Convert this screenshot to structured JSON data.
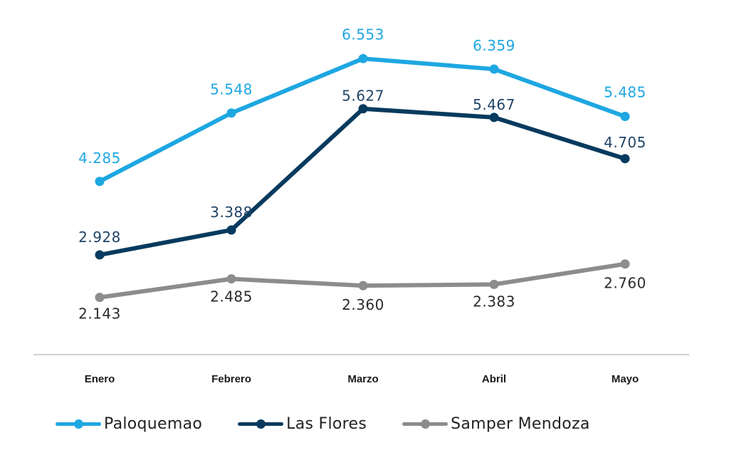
{
  "chart_data": {
    "type": "line",
    "categories": [
      "Enero",
      "Febrero",
      "Marzo",
      "Abril",
      "Mayo"
    ],
    "series": [
      {
        "name": "Paloquemao",
        "values": [
          4285,
          5548,
          6553,
          6359,
          5485
        ],
        "labels": [
          "4.285",
          "5.548",
          "6.553",
          "6.359",
          "5.485"
        ],
        "color": "#1ea7e1",
        "label_color": "#1ea7e1"
      },
      {
        "name": "Las Flores",
        "values": [
          2928,
          3388,
          5627,
          5467,
          4705
        ],
        "labels": [
          "2.928",
          "3.388",
          "5.627",
          "5.467",
          "4.705"
        ],
        "color": "#063a5e",
        "label_color": "#1f4466"
      },
      {
        "name": "Samper Mendoza",
        "values": [
          2143,
          2485,
          2360,
          2383,
          2760
        ],
        "labels": [
          "2.143",
          "2.485",
          "2.360",
          "2.383",
          "2.760"
        ],
        "color": "#8c8c8c",
        "label_color": "#2b2b2b"
      }
    ],
    "title": "",
    "xlabel": "",
    "ylabel": "",
    "grid": false,
    "legend_position": "bottom-left"
  }
}
